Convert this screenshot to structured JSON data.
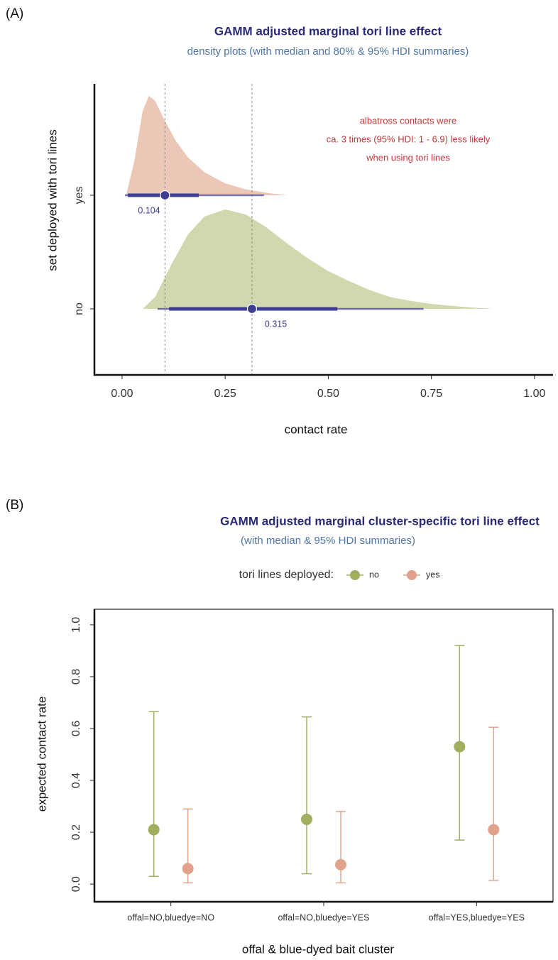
{
  "chart_data": [
    {
      "type": "halfeye",
      "panel_label": "(A)",
      "title": "GAMM adjusted marginal tori line effect",
      "subtitle": "density plots (with median and 80% & 95% HDI summaries)",
      "x_label": "contact rate",
      "y_label": "set deployed with tori lines",
      "xlim": [
        -0.067,
        1.045
      ],
      "xticks": [
        {
          "value": 0,
          "label": "0.00"
        },
        {
          "value": 0.25,
          "label": "0.25"
        },
        {
          "value": 0.5,
          "label": "0.50"
        },
        {
          "value": 0.75,
          "label": "0.75"
        },
        {
          "value": 1,
          "label": "1.00"
        }
      ],
      "interval_color": "#3d3d94",
      "median_lines": true,
      "annotation": [
        "albatross contacts were",
        "ca. 3 times (95% HDI: 1 - 6.9) less likely",
        "when using tori lines"
      ],
      "series": [
        {
          "name": "yes",
          "color": "#ecc6b6",
          "median": 0.104,
          "hdi80": [
            0.014,
            0.186
          ],
          "hdi95": [
            0.007,
            0.344
          ],
          "density_x": [
            0.01,
            0.03,
            0.05,
            0.065,
            0.08,
            0.1,
            0.13,
            0.16,
            0.2,
            0.25,
            0.3,
            0.35,
            0.4
          ],
          "density": [
            0,
            0.35,
            0.85,
            1,
            0.95,
            0.78,
            0.55,
            0.38,
            0.23,
            0.12,
            0.06,
            0.025,
            0
          ]
        },
        {
          "name": "no",
          "color": "#d3d7ae",
          "median": 0.315,
          "hdi80": [
            0.114,
            0.522
          ],
          "hdi95": [
            0.086,
            0.731
          ],
          "density_x": [
            0.05,
            0.08,
            0.12,
            0.16,
            0.2,
            0.25,
            0.3,
            0.35,
            0.4,
            0.45,
            0.5,
            0.55,
            0.6,
            0.65,
            0.7,
            0.75,
            0.8,
            0.85,
            0.9
          ],
          "density": [
            0,
            0.12,
            0.45,
            0.75,
            0.93,
            1,
            0.95,
            0.82,
            0.66,
            0.51,
            0.38,
            0.28,
            0.19,
            0.12,
            0.08,
            0.05,
            0.03,
            0.012,
            0
          ]
        }
      ]
    },
    {
      "type": "errorbar",
      "panel_label": "(B)",
      "title": "GAMM adjusted marginal cluster-specific tori line effect",
      "subtitle": "(with median & 95% HDI summaries)",
      "legend_title": "tori lines deployed:",
      "x_label": "offal & blue-dyed bait cluster",
      "y_label": "expected contact rate",
      "categories": [
        "offal=NO,bluedye=NO",
        "offal=NO,bluedye=YES",
        "offal=YES,bluedye=YES"
      ],
      "ylim": [
        -0.068,
        1.06
      ],
      "yticks": [
        {
          "value": 0,
          "label": "0.0"
        },
        0.2,
        0.4,
        0.6,
        0.8,
        {
          "value": 1,
          "label": "1.0"
        }
      ],
      "series": [
        {
          "name": "no",
          "color": "#a3ad5e",
          "values": [
            0.21,
            0.25,
            0.53
          ],
          "lower": [
            0.03,
            0.04,
            0.17
          ],
          "upper": [
            0.665,
            0.645,
            0.92
          ]
        },
        {
          "name": "yes",
          "color": "#e1a28c",
          "values": [
            0.06,
            0.075,
            0.21
          ],
          "lower": [
            0.005,
            0.005,
            0.015
          ],
          "upper": [
            0.29,
            0.28,
            0.605
          ]
        }
      ]
    }
  ]
}
